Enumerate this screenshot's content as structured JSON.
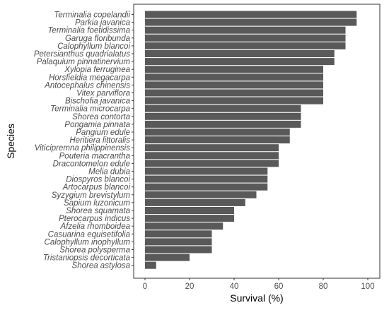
{
  "chart_data": {
    "type": "bar",
    "orientation": "horizontal",
    "categories": [
      "Terminalia copelandii",
      "Parkia javanica",
      "Terminalia foetidissima",
      "Garuga floribunda",
      "Calophyllum blancoi",
      "Petersianthus quadrialatus",
      "Palaquium pinnatinervium",
      "Xylopia ferruginea",
      "Horsfieldia megacarpa",
      "Antocephalus chinensis",
      "Vitex parviflora",
      "Bischofia javanica",
      "Terminalia microcarpa",
      "Shorea contorta",
      "Pongamia pinnata",
      "Pangium edule",
      "Heritiera littoralis",
      "Viticipremna philippinensis",
      "Pouteria macrantha",
      "Dracontomelon edule",
      "Melia dubia",
      "Diospyros blancoi",
      "Artocarpus blancoi",
      "Syzygium brevistylum",
      "Sapium luzonicum",
      "Shorea squamata",
      "Pterocarpus indicus",
      "Afzelia rhomboidea",
      "Casuarina equisetifolia",
      "Calophyllum inophyllum",
      "Shorea polysperma",
      "Tristaniopsis decorticata",
      "Shorea astylosa"
    ],
    "values": [
      95,
      95,
      90,
      90,
      90,
      85,
      85,
      80,
      80,
      80,
      80,
      80,
      70,
      70,
      70,
      65,
      65,
      60,
      60,
      60,
      55,
      55,
      55,
      50,
      45,
      40,
      40,
      35,
      30,
      30,
      30,
      20,
      5
    ],
    "xlabel": "Survival (%)",
    "ylabel": "Species",
    "xlim": [
      0,
      100
    ],
    "xticks": [
      0,
      20,
      40,
      60,
      80,
      100
    ],
    "grid": false,
    "bar_color": "#595959"
  }
}
